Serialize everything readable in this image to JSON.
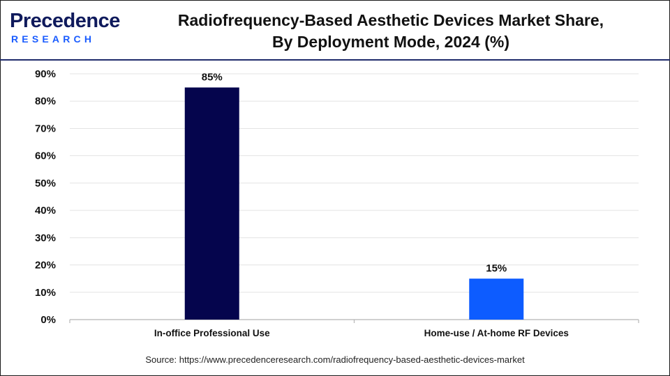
{
  "brand": {
    "logo_word": "Precedence",
    "logo_sub": "RESEARCH",
    "primary_color": "#0f1a5c",
    "accent_color": "#1a5cff"
  },
  "chart_data": {
    "type": "bar",
    "title_line1": "Radiofrequency-Based Aesthetic Devices Market Share,",
    "title_line2": "By Deployment Mode, 2024 (%)",
    "categories": [
      "In-office Professional Use",
      "Home-use / At-home RF Devices"
    ],
    "values": [
      85,
      15
    ],
    "value_labels": [
      "85%",
      "15%"
    ],
    "bar_colors": [
      "#05054d",
      "#0d5cff"
    ],
    "ylim": [
      0,
      90
    ],
    "yticks": [
      "0%",
      "10%",
      "20%",
      "30%",
      "40%",
      "50%",
      "60%",
      "70%",
      "80%",
      "90%"
    ],
    "grid": true,
    "xlabel": "",
    "ylabel": ""
  },
  "source": "Source: https://www.precedenceresearch.com/radiofrequency-based-aesthetic-devices-market"
}
